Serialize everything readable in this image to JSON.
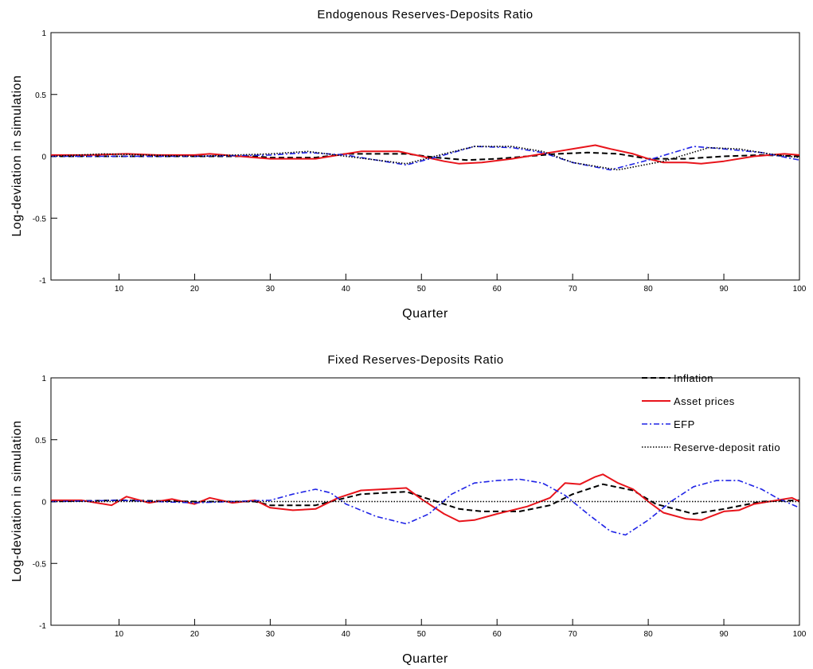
{
  "chart_data": [
    {
      "type": "line",
      "title": "Endogenous Reserves-Deposits Ratio",
      "xlabel": "Quarter",
      "ylabel": "Log-deviation in simulation",
      "xlim": [
        1,
        100
      ],
      "ylim": [
        -1,
        1
      ],
      "xticks": [
        10,
        20,
        30,
        40,
        50,
        60,
        70,
        80,
        90,
        100
      ],
      "yticks": [
        -1,
        -0.5,
        0,
        0.5,
        1
      ],
      "ytick_labels": [
        "-1",
        "-0.5",
        "0",
        "0.5",
        "1"
      ],
      "series": [
        {
          "name": "Inflation",
          "color": "#000000",
          "style": "dashed",
          "x": [
            1,
            10,
            20,
            28,
            30,
            36,
            40,
            48,
            52,
            56,
            60,
            64,
            68,
            72,
            76,
            80,
            85,
            90,
            95,
            100
          ],
          "y": [
            0.0,
            0.0,
            0.0,
            0.0,
            -0.01,
            -0.01,
            0.02,
            0.02,
            -0.01,
            -0.03,
            -0.02,
            0.0,
            0.02,
            0.03,
            0.02,
            -0.02,
            -0.02,
            0.0,
            0.01,
            0.0
          ]
        },
        {
          "name": "Asset prices",
          "color": "#e8141b",
          "style": "solid",
          "x": [
            1,
            6,
            11,
            15,
            20,
            22,
            26,
            30,
            33,
            36,
            40,
            42,
            47,
            50,
            53,
            55,
            58,
            62,
            66,
            68,
            71,
            73,
            75,
            78,
            80,
            82,
            85,
            87,
            90,
            94,
            98,
            100
          ],
          "y": [
            0.01,
            0.01,
            0.02,
            0.01,
            0.01,
            0.02,
            0.0,
            -0.02,
            -0.02,
            -0.02,
            0.02,
            0.04,
            0.04,
            0.0,
            -0.04,
            -0.06,
            -0.05,
            -0.02,
            0.02,
            0.04,
            0.07,
            0.09,
            0.06,
            0.02,
            -0.02,
            -0.05,
            -0.05,
            -0.06,
            -0.04,
            0.0,
            0.02,
            0.01
          ]
        },
        {
          "name": "EFP",
          "color": "#1f23e6",
          "style": "dashdot",
          "x": [
            1,
            10,
            20,
            30,
            35,
            40,
            48,
            53,
            57,
            62,
            66,
            70,
            75,
            80,
            86,
            90,
            95,
            100
          ],
          "y": [
            0.0,
            0.0,
            0.0,
            0.01,
            0.03,
            0.01,
            -0.07,
            0.01,
            0.08,
            0.07,
            0.03,
            -0.05,
            -0.11,
            -0.03,
            0.08,
            0.06,
            0.03,
            -0.03
          ]
        },
        {
          "name": "Reserve-deposit ratio",
          "color": "#000000",
          "style": "dotted",
          "x": [
            1,
            8,
            20,
            30,
            35,
            40,
            48,
            53,
            57,
            62,
            66,
            70,
            76,
            82,
            88,
            92,
            96,
            100
          ],
          "y": [
            0.0,
            0.02,
            0.0,
            0.02,
            0.04,
            0.0,
            -0.06,
            0.02,
            0.08,
            0.08,
            0.04,
            -0.05,
            -0.11,
            -0.04,
            0.07,
            0.06,
            0.02,
            -0.01
          ]
        }
      ]
    },
    {
      "type": "line",
      "title": "Fixed Reserves-Deposits Ratio",
      "xlabel": "Quarter",
      "ylabel": "Log-deviation in simulation",
      "xlim": [
        1,
        100
      ],
      "ylim": [
        -1,
        1
      ],
      "xticks": [
        10,
        20,
        30,
        40,
        50,
        60,
        70,
        80,
        90,
        100
      ],
      "yticks": [
        -1,
        -0.5,
        0,
        0.5,
        1
      ],
      "ytick_labels": [
        "-1",
        "-0.5",
        "0",
        "0.5",
        "1"
      ],
      "legend_position": "top-right",
      "series": [
        {
          "name": "Inflation",
          "color": "#000000",
          "style": "dashed",
          "x": [
            1,
            10,
            20,
            28,
            30,
            36,
            40,
            42,
            48,
            51,
            55,
            58,
            63,
            67,
            70,
            74,
            78,
            81,
            86,
            90,
            95,
            100
          ],
          "y": [
            0.0,
            0.01,
            0.0,
            0.0,
            -0.03,
            -0.03,
            0.03,
            0.06,
            0.08,
            0.02,
            -0.06,
            -0.08,
            -0.08,
            -0.03,
            0.06,
            0.14,
            0.09,
            -0.02,
            -0.1,
            -0.06,
            0.0,
            0.01
          ]
        },
        {
          "name": "Asset prices",
          "color": "#e8141b",
          "style": "solid",
          "x": [
            1,
            5,
            9,
            11,
            14,
            17,
            20,
            22,
            25,
            28,
            30,
            33,
            36,
            39,
            42,
            45,
            48,
            50,
            53,
            55,
            57,
            60,
            64,
            67,
            69,
            71,
            73,
            74,
            76,
            78,
            80,
            82,
            85,
            87,
            90,
            92,
            94,
            96,
            99,
            100
          ],
          "y": [
            0.01,
            0.01,
            -0.03,
            0.04,
            -0.01,
            0.02,
            -0.02,
            0.03,
            -0.01,
            0.01,
            -0.05,
            -0.07,
            -0.06,
            0.03,
            0.09,
            0.1,
            0.11,
            0.02,
            -0.1,
            -0.16,
            -0.15,
            -0.1,
            -0.04,
            0.03,
            0.15,
            0.14,
            0.2,
            0.22,
            0.15,
            0.1,
            0.0,
            -0.09,
            -0.14,
            -0.15,
            -0.08,
            -0.07,
            -0.02,
            0.0,
            0.03,
            0.0
          ]
        },
        {
          "name": "EFP",
          "color": "#1f23e6",
          "style": "dashdot",
          "x": [
            1,
            10,
            20,
            30,
            33,
            36,
            38,
            40,
            44,
            48,
            51,
            54,
            57,
            60,
            63,
            66,
            69,
            72,
            75,
            77,
            80,
            83,
            86,
            89,
            92,
            95,
            97,
            100
          ],
          "y": [
            0.0,
            0.01,
            -0.01,
            0.01,
            0.06,
            0.1,
            0.07,
            -0.02,
            -0.12,
            -0.18,
            -0.1,
            0.06,
            0.15,
            0.17,
            0.18,
            0.15,
            0.05,
            -0.1,
            -0.24,
            -0.27,
            -0.15,
            0.0,
            0.12,
            0.17,
            0.17,
            0.1,
            0.03,
            -0.05
          ]
        },
        {
          "name": "Reserve-deposit ratio",
          "color": "#000000",
          "style": "dotted",
          "x": [
            1,
            100
          ],
          "y": [
            0.0,
            0.0
          ]
        }
      ]
    }
  ]
}
